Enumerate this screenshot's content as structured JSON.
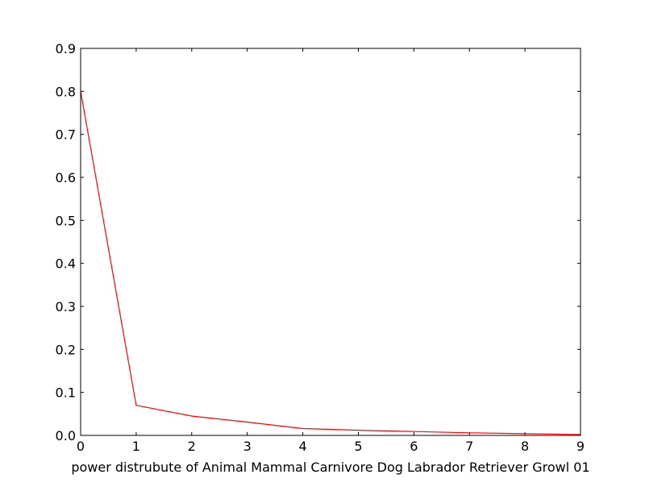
{
  "chart_data": {
    "type": "line",
    "title": "",
    "xlabel": "power distrubute of Animal Mammal Carnivore Dog Labrador Retriever Growl 01",
    "ylabel": "",
    "xlim": [
      0,
      9
    ],
    "ylim": [
      0,
      0.9
    ],
    "x_ticks": [
      "0",
      "1",
      "2",
      "3",
      "4",
      "5",
      "6",
      "7",
      "8",
      "9"
    ],
    "y_ticks": [
      "0.0",
      "0.1",
      "0.2",
      "0.3",
      "0.4",
      "0.5",
      "0.6",
      "0.7",
      "0.8",
      "0.9"
    ],
    "grid": false,
    "legend": "none",
    "series": [
      {
        "color": "#ff0000",
        "x": [
          0,
          1,
          2,
          3,
          4,
          5,
          6,
          7,
          8,
          9
        ],
        "y": [
          0.8,
          0.07,
          0.045,
          0.031,
          0.016,
          0.012,
          0.009,
          0.006,
          0.004,
          0.002
        ]
      }
    ]
  }
}
